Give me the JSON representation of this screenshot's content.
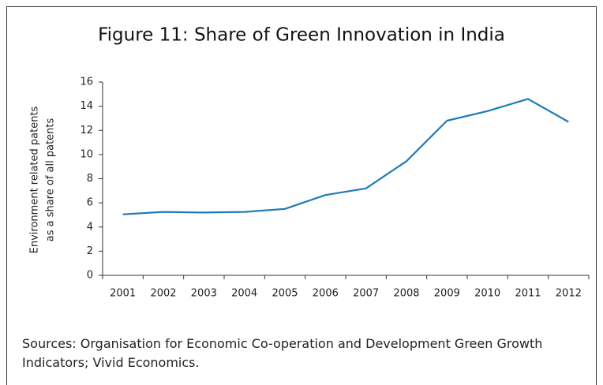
{
  "chart_data": {
    "type": "line",
    "title": "Figure 11: Share of Green Innovation in India",
    "y_label_lines": [
      "Environment related patents",
      "as a share of all patents"
    ],
    "categories": [
      "2001",
      "2002",
      "2003",
      "2004",
      "2005",
      "2006",
      "2007",
      "2008",
      "2009",
      "2010",
      "2011",
      "2012"
    ],
    "series": [
      {
        "name": "Environment related patents as a share of all patents",
        "color": "#1f7bb6",
        "values": [
          5.05,
          5.25,
          5.2,
          5.25,
          5.5,
          6.65,
          7.2,
          9.45,
          12.8,
          13.6,
          14.6,
          12.7
        ]
      }
    ],
    "ylim": [
      0,
      16
    ],
    "yticks": [
      0,
      2,
      4,
      6,
      8,
      10,
      12,
      14,
      16
    ],
    "grid": false,
    "source": "Sources: Organisation for Economic Co-operation and Development Green Growth Indicators; Vivid Economics."
  }
}
